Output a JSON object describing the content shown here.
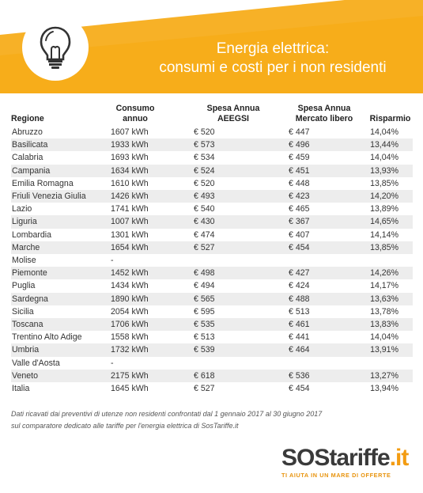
{
  "header": {
    "title_line1": "Energia elettrica:",
    "title_line2": "consumi e costi per i non residenti"
  },
  "table": {
    "columns": [
      "Regione",
      "Consumo annuo",
      "Spesa Annua AEEGSI",
      "Spesa Annua Mercato libero",
      "Risparmio"
    ],
    "rows": [
      [
        "Abruzzo",
        "1607 kWh",
        "€ 520",
        "€ 447",
        "14,04%"
      ],
      [
        "Basilicata",
        "1933 kWh",
        "€ 573",
        "€ 496",
        "13,44%"
      ],
      [
        "Calabria",
        "1693 kWh",
        "€ 534",
        "€ 459",
        "14,04%"
      ],
      [
        "Campania",
        "1634 kWh",
        "€ 524",
        "€ 451",
        "13,93%"
      ],
      [
        "Emilia Romagna",
        "1610 kWh",
        "€ 520",
        "€ 448",
        "13,85%"
      ],
      [
        "Friuli Venezia Giulia",
        "1426 kWh",
        "€ 493",
        "€ 423",
        "14,20%"
      ],
      [
        "Lazio",
        "1741 kWh",
        "€ 540",
        "€ 465",
        "13,89%"
      ],
      [
        "Liguria",
        "1007 kWh",
        "€ 430",
        "€ 367",
        "14,65%"
      ],
      [
        "Lombardia",
        "1301 kWh",
        "€ 474",
        "€ 407",
        "14,14%"
      ],
      [
        "Marche",
        "1654 kWh",
        "€ 527",
        "€ 454",
        "13,85%"
      ],
      [
        "Molise",
        "-",
        "",
        "",
        ""
      ],
      [
        "Piemonte",
        "1452 kWh",
        "€ 498",
        "€ 427",
        "14,26%"
      ],
      [
        "Puglia",
        "1434 kWh",
        "€ 494",
        "€ 424",
        "14,17%"
      ],
      [
        "Sardegna",
        "1890 kWh",
        "€ 565",
        "€ 488",
        "13,63%"
      ],
      [
        "Sicilia",
        "2054 kWh",
        "€ 595",
        "€ 513",
        "13,78%"
      ],
      [
        "Toscana",
        "1706 kWh",
        "€ 535",
        "€ 461",
        "13,83%"
      ],
      [
        "Trentino Alto Adige",
        "1558 kWh",
        "€ 513",
        "€ 441",
        "14,04%"
      ],
      [
        "Umbria",
        "1732 kWh",
        "€ 539",
        "€ 464",
        "13,91%"
      ],
      [
        "Valle d'Aosta",
        "-",
        "",
        "",
        ""
      ],
      [
        "Veneto",
        "2175 kWh",
        "€ 618",
        "€ 536",
        "13,27%"
      ],
      [
        "Italia",
        "1645 kWh",
        "€ 527",
        "€ 454",
        "13,94%"
      ]
    ]
  },
  "footnote": {
    "line1": "Dati ricavati dai preventivi di utenze non residenti confrontati dal 1 gennaio 2017 al 30 giugno 2017",
    "line2": "sul comparatore dedicato alle tariffe per l'energia elettrica di SosTariffe.it"
  },
  "logo": {
    "part1": "SOS",
    "part2": "tariffe",
    "part3": ".it",
    "tagline": "TI AIUTA IN UN MARE DI OFFERTE"
  },
  "colors": {
    "banner": "#f7ad1a",
    "accent": "#f39c12",
    "stripe": "#ededed"
  },
  "icons": {
    "banner_icon": "lightbulb-icon"
  }
}
